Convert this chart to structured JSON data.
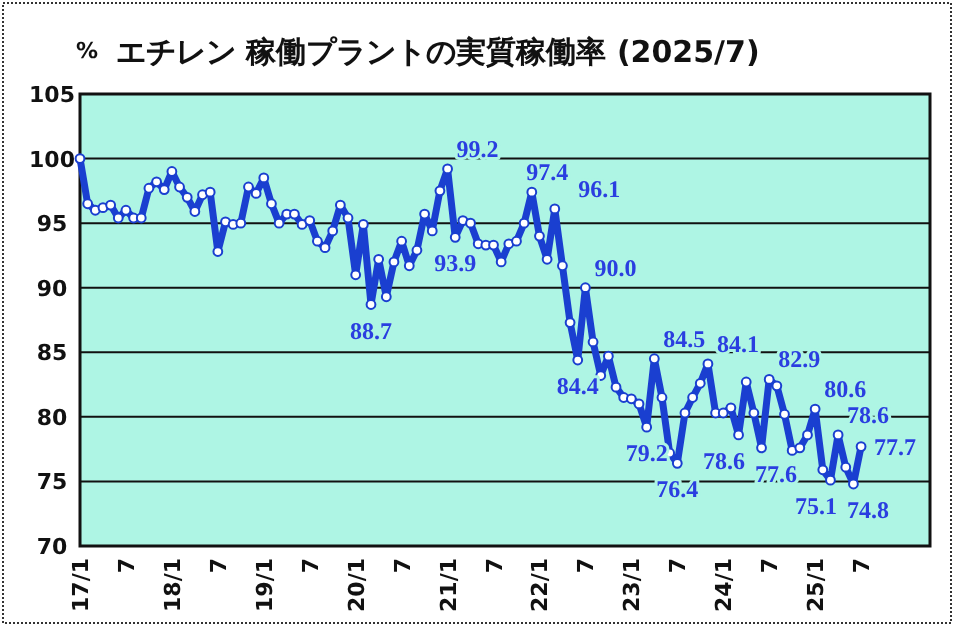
{
  "chart_data": {
    "type": "line",
    "title": "エチレン  稼働プラントの実質稼働率 (2025/7)",
    "ylabel": "%",
    "categories": [
      "17/1",
      null,
      null,
      null,
      null,
      null,
      "7",
      null,
      null,
      null,
      null,
      null,
      "18/1",
      null,
      null,
      null,
      null,
      null,
      "7",
      null,
      null,
      null,
      null,
      null,
      "19/1",
      null,
      null,
      null,
      null,
      null,
      "7",
      null,
      null,
      null,
      null,
      null,
      "20/1",
      null,
      null,
      null,
      null,
      null,
      "7",
      null,
      null,
      null,
      null,
      null,
      "21/1",
      null,
      null,
      null,
      null,
      null,
      "7",
      null,
      null,
      null,
      null,
      null,
      "22/1",
      null,
      null,
      null,
      null,
      null,
      "7",
      null,
      null,
      null,
      null,
      null,
      "23/1",
      null,
      null,
      null,
      null,
      null,
      "7",
      null,
      null,
      null,
      null,
      null,
      "24/1",
      null,
      null,
      null,
      null,
      null,
      "7",
      null,
      null,
      null,
      null,
      null,
      "25/1",
      null,
      null,
      null,
      null,
      null,
      "7",
      null,
      null,
      null,
      null,
      null,
      null,
      null,
      null,
      null
    ],
    "series": [
      {
        "color": "#1a3fd0",
        "values": [
          100.0,
          96.5,
          96.0,
          96.2,
          96.4,
          95.4,
          96.0,
          95.4,
          95.4,
          97.7,
          98.2,
          97.6,
          99.0,
          97.8,
          97.0,
          95.9,
          97.2,
          97.4,
          92.8,
          95.1,
          94.9,
          95.0,
          97.8,
          97.3,
          98.5,
          96.5,
          95.0,
          95.7,
          95.7,
          94.9,
          95.2,
          93.6,
          93.1,
          94.4,
          96.4,
          95.4,
          91.0,
          94.9,
          88.7,
          92.2,
          89.3,
          92.0,
          93.6,
          91.7,
          92.9,
          95.7,
          94.4,
          97.5,
          99.2,
          93.9,
          95.2,
          95.0,
          93.4,
          93.3,
          93.3,
          92.0,
          93.4,
          93.6,
          95.0,
          97.4,
          94.0,
          92.2,
          96.1,
          91.7,
          87.3,
          84.4,
          90.0,
          85.8,
          83.2,
          84.7,
          82.3,
          81.5,
          81.4,
          81.0,
          79.2,
          84.5,
          81.5,
          77.2,
          76.4,
          80.3,
          81.5,
          82.6,
          84.1,
          80.3,
          80.3,
          80.7,
          78.6,
          82.7,
          80.3,
          77.6,
          82.9,
          82.4,
          80.2,
          77.4,
          77.6,
          78.6,
          80.6,
          75.9,
          75.1,
          78.6,
          76.1,
          74.8,
          77.7,
          null,
          null,
          null,
          null,
          null,
          null,
          null,
          null,
          null
        ],
        "value_labels": [
          null,
          null,
          null,
          null,
          null,
          null,
          null,
          null,
          null,
          null,
          null,
          null,
          null,
          null,
          null,
          null,
          null,
          null,
          null,
          null,
          null,
          null,
          null,
          null,
          null,
          null,
          null,
          null,
          null,
          null,
          null,
          null,
          null,
          null,
          null,
          null,
          null,
          null,
          "88.7",
          null,
          null,
          null,
          null,
          null,
          null,
          null,
          null,
          null,
          "99.2",
          "93.9",
          null,
          null,
          null,
          null,
          null,
          null,
          null,
          null,
          null,
          "97.4",
          null,
          null,
          "96.1",
          null,
          null,
          "84.4",
          "90.0",
          null,
          null,
          null,
          null,
          null,
          null,
          null,
          "79.2",
          "84.5",
          null,
          null,
          "76.4",
          null,
          null,
          null,
          "84.1",
          null,
          null,
          null,
          "78.6",
          null,
          null,
          "77.6",
          "82.9",
          null,
          null,
          null,
          null,
          null,
          "80.6",
          null,
          "75.1",
          "78.6",
          null,
          "74.8",
          "77.7",
          null,
          null,
          null,
          null,
          null,
          null,
          null,
          null,
          null
        ]
      }
    ],
    "ylim": [
      70,
      105
    ],
    "yticks": [
      70,
      75,
      80,
      85,
      90,
      95,
      100,
      105
    ],
    "grid": "y",
    "marker": "circle",
    "line_style": "solid"
  }
}
